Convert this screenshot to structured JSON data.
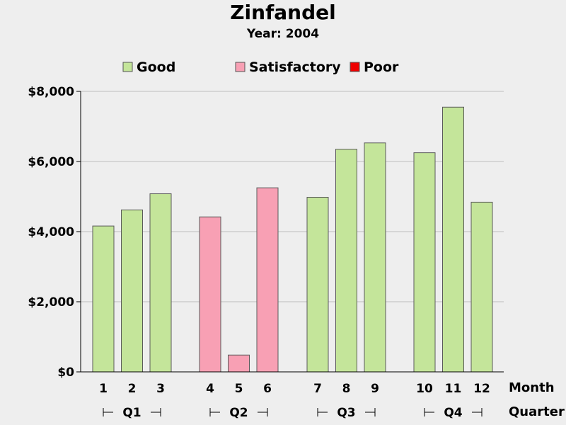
{
  "chart_data": {
    "type": "bar",
    "title": "Zinfandel",
    "subtitle": "Year: 2004",
    "categories": [
      "1",
      "2",
      "3",
      "4",
      "5",
      "6",
      "7",
      "8",
      "9",
      "10",
      "11",
      "12"
    ],
    "values": [
      4160,
      4620,
      5080,
      4420,
      480,
      5250,
      4980,
      6350,
      6530,
      6250,
      7550,
      4840
    ],
    "ratings": [
      "Good",
      "Good",
      "Good",
      "Satisfactory",
      "Satisfactory",
      "Satisfactory",
      "Good",
      "Good",
      "Good",
      "Good",
      "Good",
      "Good"
    ],
    "groups": [
      {
        "label": "Q1",
        "months": [
          0,
          1,
          2
        ]
      },
      {
        "label": "Q2",
        "months": [
          3,
          4,
          5
        ]
      },
      {
        "label": "Q3",
        "months": [
          6,
          7,
          8
        ]
      },
      {
        "label": "Q4",
        "months": [
          9,
          10,
          11
        ]
      }
    ],
    "legend": [
      {
        "name": "Good",
        "color": "#c4e59a"
      },
      {
        "name": "Satisfactory",
        "color": "#f8a0b4"
      },
      {
        "name": "Poor",
        "color": "#ee0000"
      }
    ],
    "legend_position": "top",
    "xlabel": "Month",
    "group_label": "Quarter",
    "ylabel": "",
    "ylim": [
      0,
      8000
    ],
    "yticks": [
      0,
      2000,
      4000,
      6000,
      8000
    ],
    "ytick_labels": [
      "$0",
      "$2,000",
      "$4,000",
      "$6,000",
      "$8,000"
    ],
    "grid": true
  }
}
